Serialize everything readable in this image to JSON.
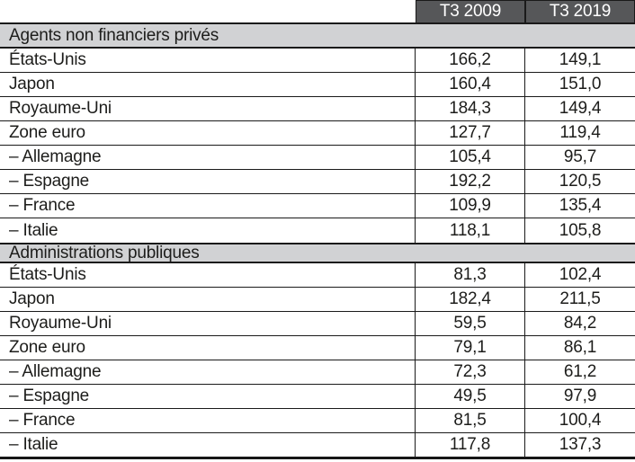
{
  "chart_data": {
    "type": "table",
    "columns": [
      "T3 2009",
      "T3 2019"
    ],
    "sections": [
      {
        "title": "Agents non financiers privés",
        "rows": [
          {
            "label": "États-Unis",
            "values": [
              "166,2",
              "149,1"
            ]
          },
          {
            "label": "Japon",
            "values": [
              "160,4",
              "151,0"
            ]
          },
          {
            "label": "Royaume-Uni",
            "values": [
              "184,3",
              "149,4"
            ]
          },
          {
            "label": "Zone euro",
            "values": [
              "127,7",
              "119,4"
            ]
          },
          {
            "label": "– Allemagne",
            "values": [
              "105,4",
              "95,7"
            ]
          },
          {
            "label": "– Espagne",
            "values": [
              "192,2",
              "120,5"
            ]
          },
          {
            "label": "– France",
            "values": [
              "109,9",
              "135,4"
            ]
          },
          {
            "label": "– Italie",
            "values": [
              "118,1",
              "105,8"
            ]
          }
        ]
      },
      {
        "title": "Administrations publiques",
        "rows": [
          {
            "label": "États-Unis",
            "values": [
              "81,3",
              "102,4"
            ]
          },
          {
            "label": "Japon",
            "values": [
              "182,4",
              "211,5"
            ]
          },
          {
            "label": "Royaume-Uni",
            "values": [
              "59,5",
              "84,2"
            ]
          },
          {
            "label": "Zone euro",
            "values": [
              "79,1",
              "86,1"
            ]
          },
          {
            "label": "– Allemagne",
            "values": [
              "72,3",
              "61,2"
            ]
          },
          {
            "label": "– Espagne",
            "values": [
              "49,5",
              "97,9"
            ]
          },
          {
            "label": "– France",
            "values": [
              "81,5",
              "100,4"
            ]
          },
          {
            "label": "– Italie",
            "values": [
              "117,8",
              "137,3"
            ]
          }
        ]
      }
    ],
    "layout_hints": {
      "grid": "horizontal rules between all rows",
      "value_alignment": "center",
      "label_alignment": "left"
    }
  },
  "colors": {
    "header_bg": "#565759",
    "header_text": "#ffffff",
    "section_bg": "#d1d2d4",
    "border": "#1a1a1a",
    "text": "#1d1d1b"
  }
}
